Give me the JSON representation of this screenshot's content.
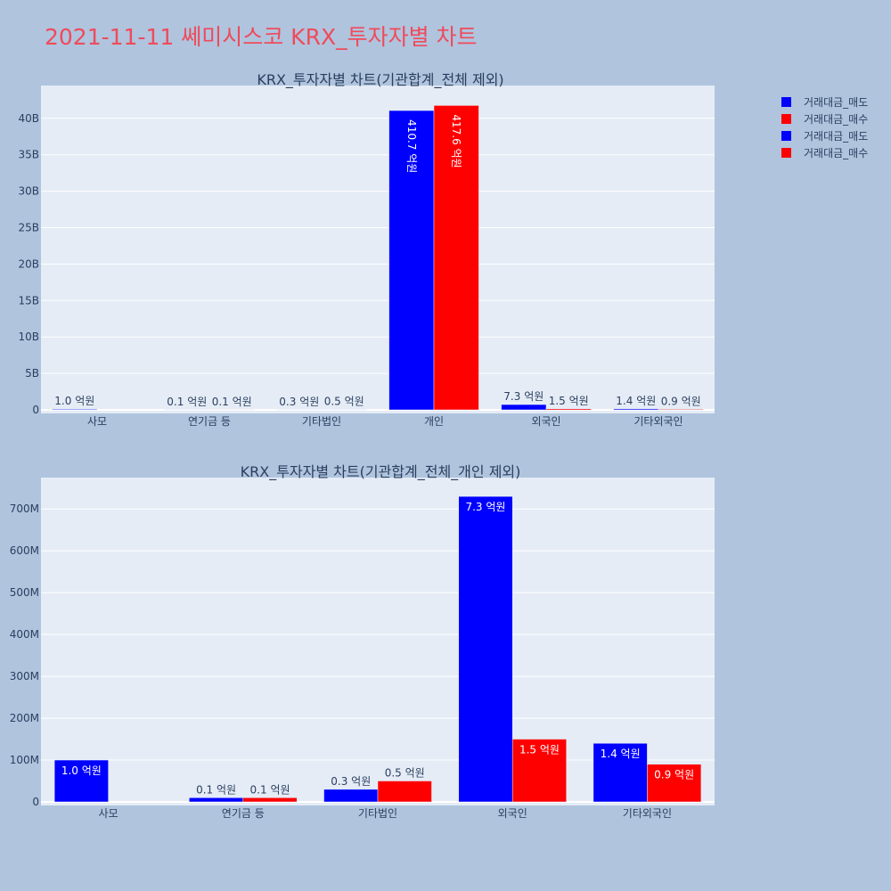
{
  "title": "2021-11-11 쎄미시스코 KRX_투자자별 차트",
  "legend": [
    {
      "label": "거래대금_매도",
      "color": "#0000ff"
    },
    {
      "label": "거래대금_매수",
      "color": "#ff0000"
    },
    {
      "label": "거래대금_매도",
      "color": "#0000ff"
    },
    {
      "label": "거래대금_매수",
      "color": "#ff0000"
    }
  ],
  "chart_data": [
    {
      "type": "bar",
      "title": "KRX_투자자별 차트(기관합계_전체 제외)",
      "categories": [
        "사모",
        "연기금 등",
        "기타법인",
        "개인",
        "외국인",
        "기타외국인"
      ],
      "series": [
        {
          "name": "거래대금_매도",
          "color": "#0000ff",
          "values": [
            100000000,
            10000000,
            30000000,
            41070000000,
            730000000,
            140000000
          ],
          "labels": [
            "1.0 억원",
            "0.1 억원",
            "0.3 억원",
            "410.7 억원",
            "7.3 억원",
            "1.4 억원"
          ]
        },
        {
          "name": "거래대금_매수",
          "color": "#ff0000",
          "values": [
            0,
            10000000,
            50000000,
            41760000000,
            150000000,
            90000000
          ],
          "labels": [
            "",
            "0.1 억원",
            "0.5 억원",
            "417.6 억원",
            "1.5 억원",
            "0.9 억원"
          ]
        }
      ],
      "ylim": [
        0,
        44500000000
      ],
      "yticks": [
        0,
        5000000000,
        10000000000,
        15000000000,
        20000000000,
        25000000000,
        30000000000,
        35000000000,
        40000000000
      ],
      "ytick_labels": [
        "0",
        "5B",
        "10B",
        "15B",
        "20B",
        "25B",
        "30B",
        "35B",
        "40B"
      ]
    },
    {
      "type": "bar",
      "title": "KRX_투자자별 차트(기관합계_전체_개인 제외)",
      "categories": [
        "사모",
        "연기금 등",
        "기타법인",
        "외국인",
        "기타외국인"
      ],
      "series": [
        {
          "name": "거래대금_매도",
          "color": "#0000ff",
          "values": [
            100000000,
            10000000,
            30000000,
            730000000,
            140000000
          ],
          "labels": [
            "1.0 억원",
            "0.1 억원",
            "0.3 억원",
            "7.3 억원",
            "1.4 억원"
          ]
        },
        {
          "name": "거래대금_매수",
          "color": "#ff0000",
          "values": [
            0,
            10000000,
            50000000,
            150000000,
            90000000
          ],
          "labels": [
            "",
            "0.1 억원",
            "0.5 억원",
            "1.5 억원",
            "0.9 억원"
          ]
        }
      ],
      "ylim": [
        0,
        775000000
      ],
      "yticks": [
        0,
        100000000,
        200000000,
        300000000,
        400000000,
        500000000,
        600000000,
        700000000
      ],
      "ytick_labels": [
        "0",
        "100M",
        "200M",
        "300M",
        "400M",
        "500M",
        "600M",
        "700M"
      ]
    }
  ]
}
